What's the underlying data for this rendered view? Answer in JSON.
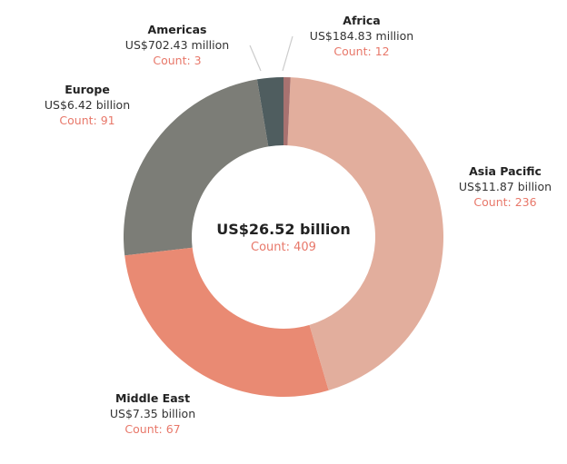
{
  "chart_data": {
    "type": "pie",
    "donut": true,
    "total": {
      "value": "US$26.52 billion",
      "count": "Count: 409"
    },
    "slices": [
      {
        "name": "Africa",
        "value_musd": 184.83,
        "value_label": "US$184.83 million",
        "count_label": "Count: 12",
        "color": "#a87270"
      },
      {
        "name": "Asia Pacific",
        "value_musd": 11870,
        "value_label": "US$11.87 billion",
        "count_label": "Count: 236",
        "color": "#e2ae9d"
      },
      {
        "name": "Middle East",
        "value_musd": 7350,
        "value_label": "US$7.35 billion",
        "count_label": "Count: 67",
        "color": "#e98a73"
      },
      {
        "name": "Europe",
        "value_musd": 6420,
        "value_label": "US$6.42 billion",
        "count_label": "Count: 91",
        "color": "#7c7d77"
      },
      {
        "name": "Americas",
        "value_musd": 702.43,
        "value_label": "US$702.43 million",
        "count_label": "Count: 3",
        "color": "#4f5d5f"
      }
    ]
  }
}
